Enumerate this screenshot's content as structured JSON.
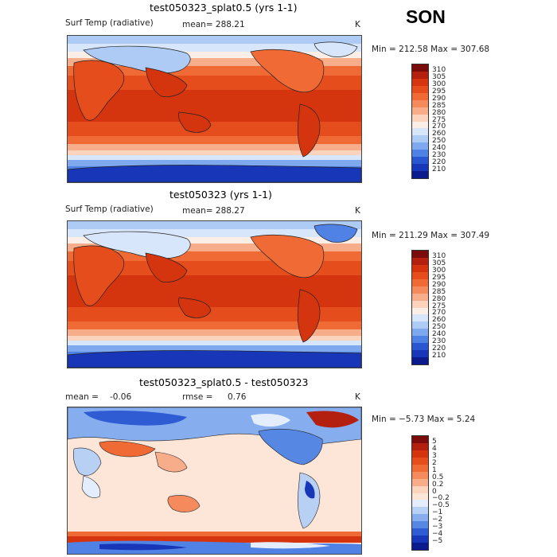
{
  "season": "SON",
  "panels": [
    {
      "title": "test050323_splat0.5 (yrs 1-1)",
      "variable": "Surf Temp (radiative)",
      "stat": "mean= 288.21",
      "units": "K",
      "minmax": "Min = 212.58 Max = 307.68",
      "colorbar": {
        "labels": [
          "310",
          "305",
          "300",
          "295",
          "290",
          "285",
          "280",
          "275",
          "270",
          "260",
          "250",
          "240",
          "230",
          "220",
          "210"
        ],
        "colors": [
          "#7a0c0c",
          "#b3200f",
          "#d4350f",
          "#e54d1c",
          "#f06a35",
          "#f58a5c",
          "#f8ad8a",
          "#fcd4bd",
          "#fbeee6",
          "#d7e6fb",
          "#aecbf5",
          "#7ea9ee",
          "#4f82e4",
          "#2a56d2",
          "#1836b8",
          "#0b1a8c"
        ]
      }
    },
    {
      "title": "test050323 (yrs 1-1)",
      "variable": "Surf Temp (radiative)",
      "stat": "mean= 288.27",
      "units": "K",
      "minmax": "Min = 211.29 Max = 307.49",
      "colorbar": {
        "labels": [
          "310",
          "305",
          "300",
          "295",
          "290",
          "285",
          "280",
          "275",
          "270",
          "260",
          "250",
          "240",
          "230",
          "220",
          "210"
        ],
        "colors": [
          "#7a0c0c",
          "#b3200f",
          "#d4350f",
          "#e54d1c",
          "#f06a35",
          "#f58a5c",
          "#f8ad8a",
          "#fcd4bd",
          "#fbeee6",
          "#d7e6fb",
          "#aecbf5",
          "#7ea9ee",
          "#4f82e4",
          "#2a56d2",
          "#1836b8",
          "#0b1a8c"
        ]
      }
    },
    {
      "title": "test050323_splat0.5 - test050323",
      "stat_mean_label": "mean =",
      "stat_mean_value": "-0.06",
      "stat_rmse_label": "rmse =",
      "stat_rmse_value": "0.76",
      "units": "K",
      "minmax": "Min = −5.73 Max =    5.24",
      "colorbar": {
        "labels": [
          "5",
          "4",
          "3",
          "2",
          "1",
          "0.5",
          "0.2",
          "0",
          "−0.2",
          "−0.5",
          "−1",
          "−2",
          "−3",
          "−4",
          "−5"
        ],
        "colors": [
          "#7a0c0c",
          "#b3200f",
          "#d4350f",
          "#e54d1c",
          "#f06a35",
          "#f58a5c",
          "#f8ad8a",
          "#fcd4bd",
          "#fde6d8",
          "#e3edfb",
          "#b9d0f5",
          "#86adee",
          "#5587e3",
          "#2f5cd3",
          "#1836b8",
          "#0b1a8c"
        ]
      }
    }
  ]
}
